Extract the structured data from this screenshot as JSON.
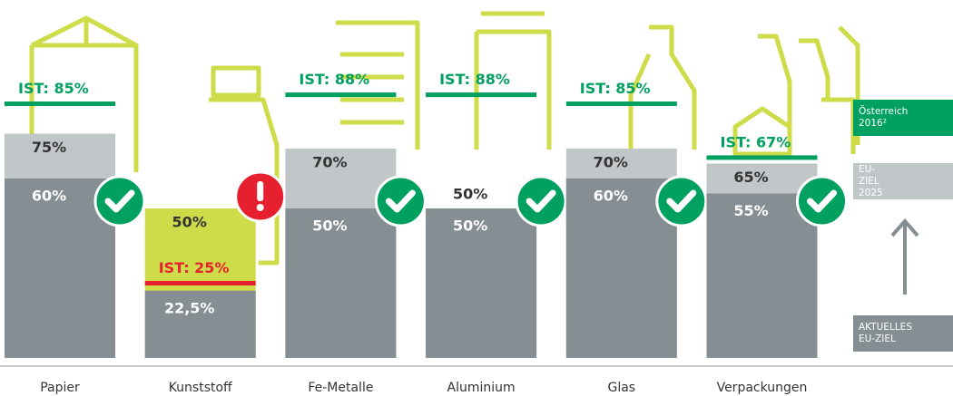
{
  "chart_data": {
    "type": "bar",
    "categories": [
      "Papier",
      "Kunststoff",
      "Fe-Metalle",
      "Aluminium",
      "Glas",
      "Verpackungen"
    ],
    "series": [
      {
        "name": "AKTUELLES EU-ZIEL",
        "color": "#858e92",
        "values": [
          60,
          22.5,
          50,
          50,
          60,
          55
        ],
        "value_labels": [
          "60%",
          "22,5%",
          "50%",
          "50%",
          "60%",
          "55%"
        ]
      },
      {
        "name": "EU-ZIEL 2025",
        "color": "#c1c6c8",
        "values": [
          75,
          50,
          70,
          50,
          70,
          65
        ],
        "value_labels": [
          "75%",
          "50%",
          "70%",
          "50%",
          "70%",
          "65%"
        ]
      },
      {
        "name": "Österreich 2016²",
        "color": "#00a060",
        "values": [
          85,
          25,
          88,
          88,
          85,
          67
        ],
        "value_labels": [
          "IST: 85%",
          "IST: 25%",
          "IST: 88%",
          "IST: 88%",
          "IST: 85%",
          "IST: 67%"
        ]
      }
    ],
    "alert_color": "#e6202e",
    "alert_fill": "#cfdc4a",
    "ylim": [
      0,
      100
    ]
  }
}
